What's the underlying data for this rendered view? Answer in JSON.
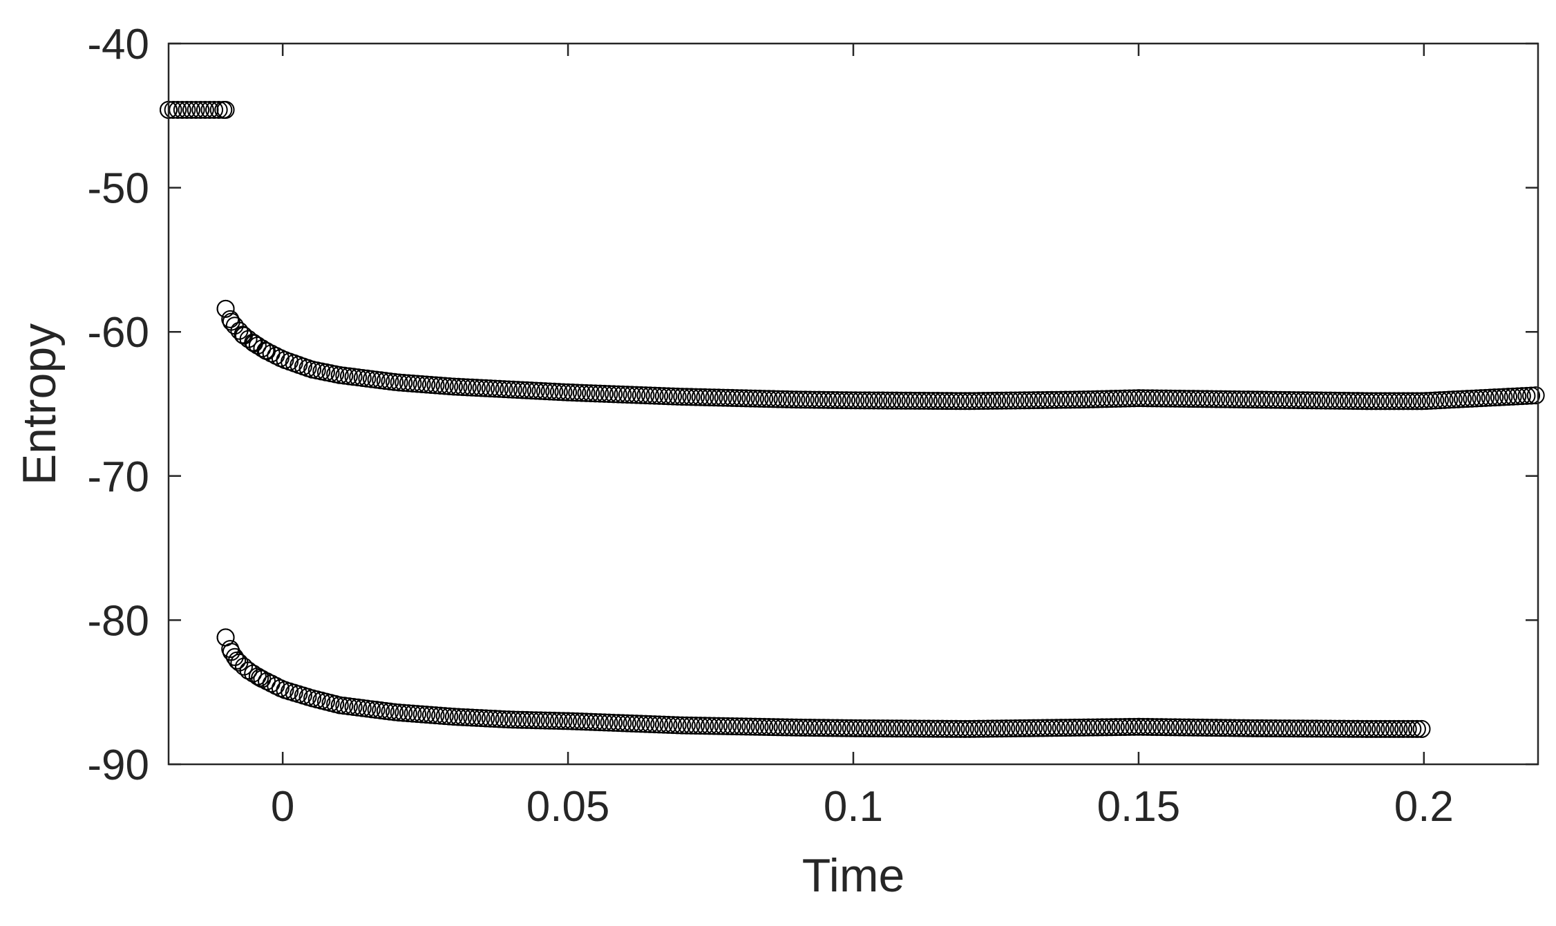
{
  "chart_data": {
    "type": "scatter",
    "title": "",
    "xlabel": "Time",
    "ylabel": "Entropy",
    "xlim": [
      -0.02,
      0.22
    ],
    "ylim": [
      -90,
      -40
    ],
    "xticks": [
      0,
      0.05,
      0.1,
      0.15,
      0.2
    ],
    "xtick_labels": [
      "0",
      "0.05",
      "0.1",
      "0.15",
      "0.2"
    ],
    "yticks": [
      -40,
      -50,
      -60,
      -70,
      -80,
      -90
    ],
    "ytick_labels": [
      "-40",
      "-50",
      "-60",
      "-70",
      "-80",
      "-90"
    ],
    "grid": false,
    "legend": "none",
    "marker": "open circle",
    "marker_color": "#000000",
    "axis_color": "#262626",
    "series": [
      {
        "x_start": -0.02,
        "x_end": -0.01,
        "x_step": 0.0008,
        "points": [
          [
            -0.02,
            -44.6
          ],
          [
            -0.01,
            -44.6
          ]
        ]
      },
      {
        "x_start": -0.01,
        "x_end": 0.22,
        "x_step": 0.0008,
        "points": [
          [
            -0.01,
            -58.4
          ],
          [
            -0.009,
            -59.3
          ],
          [
            -0.007,
            -60.2
          ],
          [
            -0.005,
            -60.8
          ],
          [
            -0.003,
            -61.3
          ],
          [
            0.0,
            -61.9
          ],
          [
            0.005,
            -62.6
          ],
          [
            0.01,
            -63.0
          ],
          [
            0.02,
            -63.5
          ],
          [
            0.03,
            -63.8
          ],
          [
            0.04,
            -64.0
          ],
          [
            0.05,
            -64.2
          ],
          [
            0.07,
            -64.5
          ],
          [
            0.09,
            -64.7
          ],
          [
            0.1,
            -64.75
          ],
          [
            0.12,
            -64.8
          ],
          [
            0.14,
            -64.7
          ],
          [
            0.15,
            -64.6
          ],
          [
            0.17,
            -64.7
          ],
          [
            0.19,
            -64.8
          ],
          [
            0.2,
            -64.8
          ],
          [
            0.21,
            -64.6
          ],
          [
            0.22,
            -64.4
          ]
        ]
      },
      {
        "x_start": -0.01,
        "x_end": 0.2,
        "x_step": 0.0008,
        "points": [
          [
            -0.01,
            -81.2
          ],
          [
            -0.009,
            -82.2
          ],
          [
            -0.008,
            -82.8
          ],
          [
            -0.006,
            -83.5
          ],
          [
            -0.004,
            -84.0
          ],
          [
            0.0,
            -84.8
          ],
          [
            0.005,
            -85.4
          ],
          [
            0.01,
            -85.9
          ],
          [
            0.02,
            -86.4
          ],
          [
            0.03,
            -86.7
          ],
          [
            0.04,
            -86.9
          ],
          [
            0.05,
            -87.0
          ],
          [
            0.07,
            -87.3
          ],
          [
            0.09,
            -87.45
          ],
          [
            0.1,
            -87.5
          ],
          [
            0.12,
            -87.55
          ],
          [
            0.14,
            -87.45
          ],
          [
            0.15,
            -87.4
          ],
          [
            0.17,
            -87.5
          ],
          [
            0.19,
            -87.55
          ],
          [
            0.2,
            -87.55
          ]
        ]
      }
    ]
  }
}
